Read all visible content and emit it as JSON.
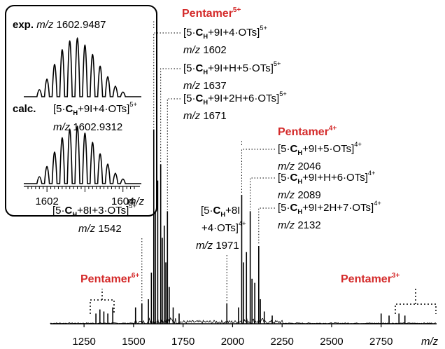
{
  "chart_data": {
    "type": "line",
    "xlabel": "m/z",
    "xlim": [
      1080,
      3030
    ],
    "xticks": [
      1250,
      1500,
      1750,
      2000,
      2250,
      2500,
      2750
    ],
    "xtick_labels": [
      "1250",
      "1500",
      "1750",
      "2000",
      "2250",
      "2500",
      "2750"
    ],
    "peaks": [
      {
        "x": 1602,
        "y": 0.95
      },
      {
        "x": 1610,
        "y": 0.55
      },
      {
        "x": 1622,
        "y": 0.7
      },
      {
        "x": 1637,
        "y": 0.78
      },
      {
        "x": 1645,
        "y": 0.42
      },
      {
        "x": 1655,
        "y": 0.48
      },
      {
        "x": 1663,
        "y": 0.3
      },
      {
        "x": 1671,
        "y": 0.55
      },
      {
        "x": 1680,
        "y": 0.18
      },
      {
        "x": 1590,
        "y": 0.25
      },
      {
        "x": 1575,
        "y": 0.12
      },
      {
        "x": 1542,
        "y": 0.1
      },
      {
        "x": 1510,
        "y": 0.08
      },
      {
        "x": 1700,
        "y": 0.08
      },
      {
        "x": 1730,
        "y": 0.05
      },
      {
        "x": 2046,
        "y": 0.63
      },
      {
        "x": 2055,
        "y": 0.3
      },
      {
        "x": 2070,
        "y": 0.35
      },
      {
        "x": 2089,
        "y": 0.55
      },
      {
        "x": 2098,
        "y": 0.22
      },
      {
        "x": 2112,
        "y": 0.2
      },
      {
        "x": 2132,
        "y": 0.38
      },
      {
        "x": 2140,
        "y": 0.12
      },
      {
        "x": 2030,
        "y": 0.08
      },
      {
        "x": 1971,
        "y": 0.1
      },
      {
        "x": 2160,
        "y": 0.06
      },
      {
        "x": 2200,
        "y": 0.04
      },
      {
        "x": 1310,
        "y": 0.05
      },
      {
        "x": 1330,
        "y": 0.07
      },
      {
        "x": 1350,
        "y": 0.06
      },
      {
        "x": 1370,
        "y": 0.05
      },
      {
        "x": 1395,
        "y": 0.08
      },
      {
        "x": 2750,
        "y": 0.05
      },
      {
        "x": 2790,
        "y": 0.04
      },
      {
        "x": 2840,
        "y": 0.05
      },
      {
        "x": 2870,
        "y": 0.04
      }
    ],
    "groups": [
      {
        "name": "Pentamer",
        "charge": "5+"
      },
      {
        "name": "Pentamer",
        "charge": "4+"
      },
      {
        "name": "Pentamer",
        "charge": "6+"
      },
      {
        "name": "Pentamer",
        "charge": "3+"
      }
    ],
    "annotations": [
      {
        "n": "5·",
        "c": "C",
        "c_sub": "H",
        "rest": "+9I+4·OTs]",
        "sup": "5+",
        "mz_prefix": "m/z",
        "mz": "1602",
        "x": 1602
      },
      {
        "n": "5·",
        "c": "C",
        "c_sub": "H",
        "rest": "+9I+H+5·OTs]",
        "sup": "5+",
        "mz_prefix": "m/z",
        "mz": "1637",
        "x": 1637
      },
      {
        "n": "5·",
        "c": "C",
        "c_sub": "H",
        "rest": "+9I+2H+6·OTs]",
        "sup": "5+",
        "mz_prefix": "m/z",
        "mz": "1671",
        "x": 1671
      },
      {
        "n": "5·",
        "c": "C",
        "c_sub": "H",
        "rest": "+9I+5·OTs]",
        "sup": "4+",
        "mz_prefix": "m/z",
        "mz": "2046",
        "x": 2046
      },
      {
        "n": "5·",
        "c": "C",
        "c_sub": "H",
        "rest": "+9I+H+6·OTs]",
        "sup": "4+",
        "mz_prefix": "m/z",
        "mz": "2089",
        "x": 2089
      },
      {
        "n": "5·",
        "c": "C",
        "c_sub": "H",
        "rest": "+9I+2H+7·OTs]",
        "sup": "4+",
        "mz_prefix": "m/z",
        "mz": "2132",
        "x": 2132
      },
      {
        "n": "5·",
        "c": "C",
        "c_sub": "H",
        "rest": "+8I+3·OTs]",
        "sup": "5+",
        "mz_prefix": "m/z",
        "mz": "1542",
        "x": 1542
      },
      {
        "n": "5·",
        "c": "C",
        "c_sub": "H",
        "rest": "+8I",
        "line2": "+4·OTs]",
        "sup": "4+",
        "mz_prefix": "m/z",
        "mz": "1971",
        "x": 1971
      }
    ],
    "inset": {
      "exp_label": "exp.",
      "exp_mz_prefix": "m/z",
      "exp_mz": "1602.9487",
      "calc_label": "calc.",
      "calc_formula": {
        "n": "5·",
        "c": "C",
        "c_sub": "H",
        "rest": "+9I+4·OTs]",
        "sup": "5+"
      },
      "calc_mz_prefix": "m/z",
      "calc_mz": "1602.9312",
      "xticks": [
        "1602",
        "1604"
      ],
      "xlabel": "m/z",
      "isotope_peaks": [
        {
          "x": 1601.8,
          "y": 0.12
        },
        {
          "x": 1602.0,
          "y": 0.3
        },
        {
          "x": 1602.2,
          "y": 0.55
        },
        {
          "x": 1602.4,
          "y": 0.8
        },
        {
          "x": 1602.6,
          "y": 0.95
        },
        {
          "x": 1602.8,
          "y": 1.0
        },
        {
          "x": 1603.0,
          "y": 0.88
        },
        {
          "x": 1603.2,
          "y": 0.72
        },
        {
          "x": 1603.4,
          "y": 0.52
        },
        {
          "x": 1603.6,
          "y": 0.34
        },
        {
          "x": 1603.8,
          "y": 0.18
        },
        {
          "x": 1604.0,
          "y": 0.08
        }
      ]
    }
  }
}
